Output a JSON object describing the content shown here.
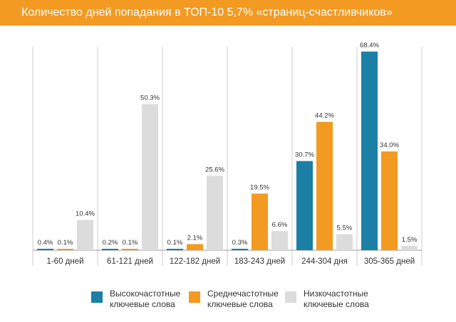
{
  "title": "Количество дней попадания в ТОП-10 5,7% «страниц-счастливчиков»",
  "colors": {
    "title_bg": "#f39a22",
    "high": "#1c7fa6",
    "mid": "#f39a22",
    "low": "#dcdcdc",
    "grid": "#cccccc",
    "text": "#333333"
  },
  "chart_data": {
    "type": "bar",
    "title": "Количество дней попадания в ТОП-10 5,7% «страниц-счастливчиков»",
    "xlabel": "",
    "ylabel": "",
    "ylim": [
      0,
      70
    ],
    "grid": false,
    "legend_position": "bottom",
    "categories": [
      "1-60 дней",
      "61-121 дней",
      "122-182 дней",
      "183-243 дней",
      "244-304 дня",
      "305-365 дней"
    ],
    "series": [
      {
        "name": "Высокочастотные ключевые слова",
        "color": "#1c7fa6",
        "values": [
          0.4,
          0.2,
          0.1,
          0.3,
          30.7,
          68.4
        ],
        "labels": [
          "0.4%",
          "0.2%",
          "0.1%",
          "0.3%",
          "30.7%",
          "68.4%"
        ]
      },
      {
        "name": "Среднечастотные ключевые слова",
        "color": "#f39a22",
        "values": [
          0.1,
          0.1,
          2.1,
          19.5,
          44.2,
          34.0
        ],
        "labels": [
          "0.1%",
          "0.1%",
          "2.1%",
          "19.5%",
          "44.2%",
          "34.0%"
        ]
      },
      {
        "name": "Низкочастотные ключевые слова",
        "color": "#dcdcdc",
        "values": [
          10.4,
          50.3,
          25.6,
          6.6,
          5.5,
          1.5
        ],
        "labels": [
          "10.4%",
          "50.3%",
          "25.6%",
          "6.6%",
          "5.5%",
          "1.5%"
        ]
      }
    ]
  },
  "legend": [
    {
      "label": "Высокочастотные\nключевые слова",
      "color": "#1c7fa6"
    },
    {
      "label": "Среднечастотные\nключевые слова",
      "color": "#f39a22"
    },
    {
      "label": "Низкочастотные\nключевые слова",
      "color": "#dcdcdc"
    }
  ]
}
